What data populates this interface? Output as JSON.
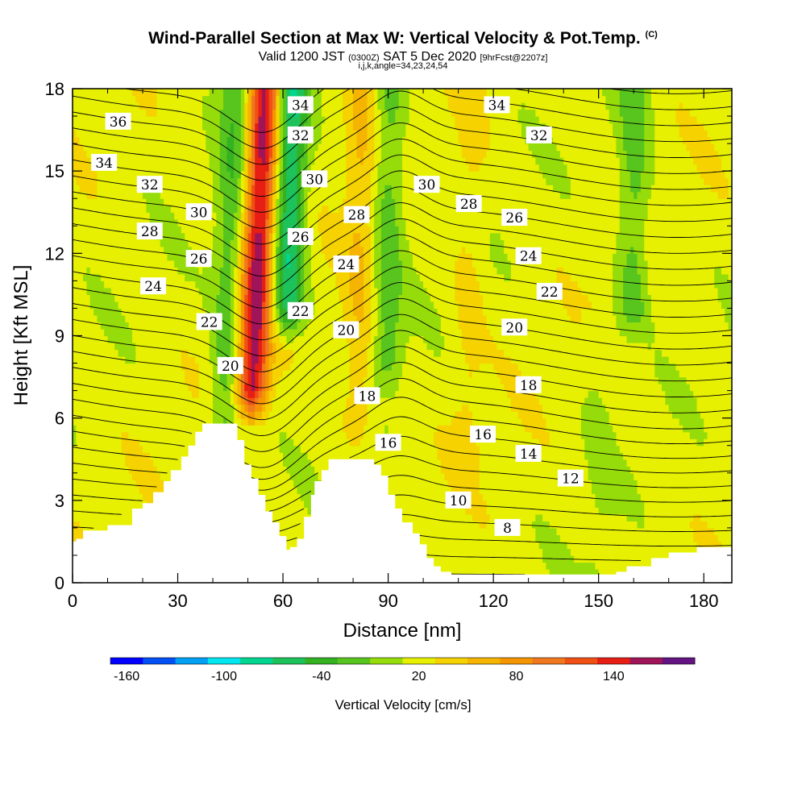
{
  "header": {
    "title": "Wind-Parallel Section at Max W: Vertical Velocity & Pot.Temp.",
    "title_mark": "(C)",
    "valid_prefix": "Valid 1200 JST",
    "valid_utc": "(0300Z)",
    "valid_date": "SAT 5 Dec 2020",
    "forecast": "[9hrFcst@2207z]",
    "indices": "i,j,k,angle=34,23,24,54"
  },
  "chart_data": {
    "type": "heatmap",
    "xlabel": "Distance [nm]",
    "ylabel": "Height [Kft MSL]",
    "xlim": [
      0,
      188
    ],
    "ylim": [
      0,
      18
    ],
    "x_ticks": [
      "0",
      "30",
      "60",
      "90",
      "120",
      "150",
      "180"
    ],
    "y_ticks": [
      "0",
      "3",
      "6",
      "9",
      "12",
      "15",
      "18"
    ],
    "terrain": {
      "x": [
        0,
        1,
        3,
        10,
        17,
        20,
        23,
        26,
        28,
        31,
        33,
        35,
        37,
        39,
        42,
        45,
        47,
        49,
        51,
        53,
        55,
        57,
        59,
        61,
        62,
        64,
        66,
        68,
        69,
        71,
        73,
        75,
        78,
        80,
        83,
        86,
        88,
        90,
        92,
        94,
        97,
        99,
        101,
        103,
        105,
        108,
        112,
        120,
        130,
        140,
        150,
        155,
        158,
        165,
        170,
        178,
        188
      ],
      "height": [
        1.5,
        1.6,
        1.9,
        2.1,
        2.7,
        2.9,
        3.3,
        3.7,
        4.1,
        4.6,
        5.0,
        5.5,
        5.8,
        5.8,
        5.8,
        5.8,
        5.2,
        4.3,
        3.8,
        3.2,
        2.6,
        2.2,
        1.7,
        1.2,
        1.3,
        1.6,
        2.4,
        3.2,
        3.7,
        4.1,
        4.5,
        4.5,
        4.5,
        4.5,
        4.5,
        4.3,
        3.9,
        3.2,
        2.7,
        2.2,
        1.8,
        1.4,
        0.9,
        0.6,
        0.4,
        0.3,
        0.3,
        0.3,
        0.3,
        0.3,
        0.3,
        0.4,
        0.6,
        0.9,
        1.1,
        1.3,
        1.3
      ]
    },
    "vertical_velocity_field": {
      "units": "cm/s",
      "background": 10,
      "features": [
        {
          "x": 53,
          "y_range": [
            7,
            18
          ],
          "value": 150,
          "tilt_nm_per_kft": 0.35
        },
        {
          "x": 62,
          "y_range": [
            10,
            18
          ],
          "value": -80,
          "tilt_nm_per_kft": 0.2
        },
        {
          "x": 45,
          "y_range": [
            5.5,
            18
          ],
          "value": -35,
          "tilt_nm_per_kft": 0.25
        },
        {
          "x": 82,
          "y_range": [
            6,
            18
          ],
          "value": 40,
          "tilt_nm_per_kft": 0.1
        },
        {
          "x": 90,
          "y_range": [
            8,
            18
          ],
          "value": -30,
          "tilt_nm_per_kft": 0.05
        },
        {
          "x": 113,
          "y_range": [
            5,
            18
          ],
          "value": 25,
          "tilt_nm_per_kft": 0.1
        },
        {
          "x": 160,
          "y_range": [
            10,
            18
          ],
          "value": -30,
          "tilt_nm_per_kft": 0.05
        },
        {
          "x": 150,
          "y_range": [
            0,
            9
          ],
          "value": 0,
          "tilt_nm_per_kft": 0.0
        }
      ]
    },
    "potential_temperature": {
      "units": "degC",
      "contour_interval": 1,
      "labels": [
        {
          "value": 36,
          "x": 13,
          "y": 16.8
        },
        {
          "value": 34,
          "x": 9,
          "y": 15.3
        },
        {
          "value": 32,
          "x": 22,
          "y": 14.5
        },
        {
          "value": 30,
          "x": 36,
          "y": 13.5
        },
        {
          "value": 28,
          "x": 22,
          "y": 12.8
        },
        {
          "value": 26,
          "x": 36,
          "y": 11.8
        },
        {
          "value": 24,
          "x": 23,
          "y": 10.8
        },
        {
          "value": 22,
          "x": 39,
          "y": 9.5
        },
        {
          "value": 20,
          "x": 45,
          "y": 7.9
        },
        {
          "value": 34,
          "x": 65,
          "y": 17.4
        },
        {
          "value": 32,
          "x": 65,
          "y": 16.3
        },
        {
          "value": 30,
          "x": 69,
          "y": 14.7
        },
        {
          "value": 26,
          "x": 65,
          "y": 12.6
        },
        {
          "value": 22,
          "x": 65,
          "y": 9.9
        },
        {
          "value": 28,
          "x": 81,
          "y": 13.4
        },
        {
          "value": 24,
          "x": 78,
          "y": 11.6
        },
        {
          "value": 20,
          "x": 78,
          "y": 9.2
        },
        {
          "value": 18,
          "x": 84,
          "y": 6.8
        },
        {
          "value": 16,
          "x": 90,
          "y": 5.1
        },
        {
          "value": 34,
          "x": 121,
          "y": 17.4
        },
        {
          "value": 32,
          "x": 133,
          "y": 16.3
        },
        {
          "value": 30,
          "x": 101,
          "y": 14.5
        },
        {
          "value": 28,
          "x": 113,
          "y": 13.8
        },
        {
          "value": 26,
          "x": 126,
          "y": 13.3
        },
        {
          "value": 24,
          "x": 130,
          "y": 11.9
        },
        {
          "value": 22,
          "x": 136,
          "y": 10.6
        },
        {
          "value": 20,
          "x": 126,
          "y": 9.3
        },
        {
          "value": 18,
          "x": 130,
          "y": 7.2
        },
        {
          "value": 16,
          "x": 117,
          "y": 5.4
        },
        {
          "value": 14,
          "x": 130,
          "y": 4.7
        },
        {
          "value": 12,
          "x": 142,
          "y": 3.8
        },
        {
          "value": 10,
          "x": 110,
          "y": 3.0
        },
        {
          "value": 8,
          "x": 124,
          "y": 2.0
        }
      ]
    },
    "colorbar": {
      "label": "Vertical Velocity [cm/s]",
      "tick_labels": [
        "-160",
        "-100",
        "-40",
        "20",
        "80",
        "140"
      ],
      "colors": [
        "#0000ff",
        "#0050f5",
        "#00a0f5",
        "#00e6f0",
        "#00d690",
        "#1ec25a",
        "#34b222",
        "#58c41e",
        "#96dc0a",
        "#e6f000",
        "#f5d200",
        "#f5b400",
        "#f59600",
        "#f0781e",
        "#f05014",
        "#e61e14",
        "#a0145a",
        "#641482"
      ]
    }
  }
}
